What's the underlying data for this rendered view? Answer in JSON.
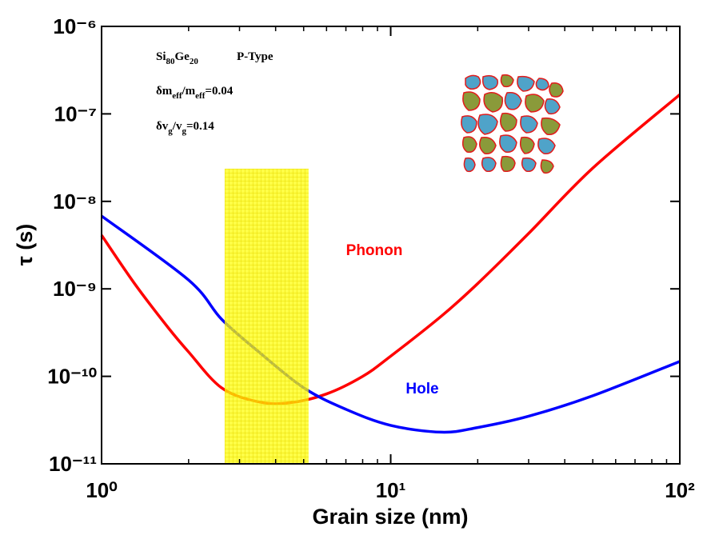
{
  "chart_data": {
    "type": "line",
    "x_label": "Grain size (nm)",
    "y_label": "τ (s)",
    "xscale": "log",
    "yscale": "log",
    "xlim": [
      1,
      100
    ],
    "ylim": [
      1e-11,
      1e-06
    ],
    "xticks": [
      {
        "value": 1,
        "label": "10⁰"
      },
      {
        "value": 10,
        "label": "10¹"
      },
      {
        "value": 100,
        "label": "10²"
      }
    ],
    "yticks": [
      {
        "value": 1e-11,
        "label": "10⁻¹¹"
      },
      {
        "value": 1e-10,
        "label": "10⁻¹⁰"
      },
      {
        "value": 1e-09,
        "label": "10⁻⁹"
      },
      {
        "value": 1e-08,
        "label": "10⁻⁸"
      },
      {
        "value": 1e-07,
        "label": "10⁻⁷"
      },
      {
        "value": 1e-06,
        "label": "10⁻⁶"
      }
    ],
    "series": [
      {
        "name": "Phonon",
        "color": "#ff0000",
        "x": [
          1,
          1.3,
          1.7,
          2,
          2.6,
          3.5,
          4.5,
          6,
          8,
          10,
          15,
          20,
          30,
          50,
          100
        ],
        "values": [
          4.1e-09,
          1.15e-09,
          3.6e-10,
          1.9e-10,
          7.4e-11,
          5.1e-11,
          5e-11,
          6.3e-11,
          1e-10,
          1.7e-10,
          4.9e-10,
          1.15e-09,
          4.3e-09,
          2.4e-08,
          1.66e-07
        ]
      },
      {
        "name": "Hole",
        "color": "#0000ff",
        "x": [
          1,
          2,
          2.6,
          3.5,
          5,
          7,
          10,
          15,
          20,
          30,
          50,
          100
        ],
        "values": [
          6.8e-09,
          1.26e-09,
          4.5e-10,
          1.9e-10,
          7.4e-11,
          4.2e-11,
          2.75e-11,
          2.3e-11,
          2.6e-11,
          3.5e-11,
          6e-11,
          1.48e-10
        ]
      }
    ],
    "highlight": {
      "x": [
        2.67,
        5.2
      ],
      "y": [
        1e-11,
        2.35e-08
      ],
      "color": "#ffff00"
    },
    "annotations": [
      {
        "parts": [
          {
            "text": "Si"
          },
          {
            "text": "80",
            "sub": true
          },
          {
            "text": "Ge"
          },
          {
            "text": "20",
            "sub": true
          }
        ]
      },
      {
        "parts": [
          {
            "text": "δm"
          },
          {
            "text": "eff",
            "sub": true
          },
          {
            "text": "/m"
          },
          {
            "text": "eff",
            "sub": true
          },
          {
            "text": "=0.04"
          }
        ]
      },
      {
        "parts": [
          {
            "text": "δv"
          },
          {
            "text": "g",
            "sub": true
          },
          {
            "text": "/v"
          },
          {
            "text": "g",
            "sub": true
          },
          {
            "text": "=0.14"
          }
        ]
      }
    ],
    "doping": "P-Type"
  }
}
